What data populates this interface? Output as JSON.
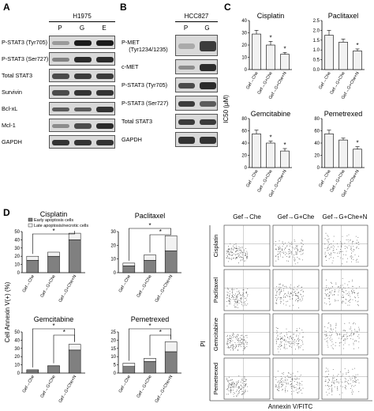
{
  "panel_letters": {
    "a": "A",
    "b": "B",
    "c": "C",
    "d": "D"
  },
  "panel_a": {
    "cell_line": "H1975",
    "lanes": [
      "P",
      "G",
      "E"
    ],
    "bands": [
      {
        "label": "P-STAT3 (Tyr705)",
        "pattern": [
          0.2,
          1,
          1
        ]
      },
      {
        "label": "P-STAT3 (Ser727)",
        "pattern": [
          0.35,
          0.9,
          0.9
        ]
      },
      {
        "label": "Total STAT3",
        "pattern": [
          0.7,
          0.8,
          0.8
        ]
      },
      {
        "label": "Survivin",
        "pattern": [
          0.7,
          0.85,
          0.85
        ]
      },
      {
        "label": "Bcl-xL",
        "pattern": [
          0.6,
          0.6,
          0.85
        ]
      },
      {
        "label": "Mcl-1",
        "pattern": [
          0.3,
          0.7,
          0.9
        ]
      },
      {
        "label": "GAPDH",
        "pattern": [
          0.85,
          0.85,
          0.85
        ]
      }
    ]
  },
  "panel_b": {
    "cell_line": "HCC827",
    "lanes": [
      "P",
      "G"
    ],
    "bands": [
      {
        "label": "P-MET\n(Tyr1234/1235)",
        "pattern": [
          0.1,
          0.8
        ]
      },
      {
        "label": "c-MET",
        "pattern": [
          0.3,
          0.9
        ]
      },
      {
        "label": "P-STAT3 (Tyr705)",
        "pattern": [
          0.7,
          0.9
        ]
      },
      {
        "label": "P-STAT3 (Ser727)",
        "pattern": [
          0.8,
          0.6
        ]
      },
      {
        "label": "Total STAT3",
        "pattern": [
          0.8,
          0.8
        ]
      },
      {
        "label": "GAPDH",
        "pattern": [
          0.85,
          0.85
        ]
      }
    ]
  },
  "panel_c": {
    "ylabel": "IC50 (μM)",
    "star": "*",
    "categories": [
      "Gef→Che",
      "Gef→G+Che",
      "Gef→G+Che+N"
    ],
    "charts": [
      {
        "title": "Cisplatin",
        "values": [
          29,
          20,
          12.5
        ],
        "errors": [
          3,
          3,
          1.5
        ],
        "ylim": [
          0,
          40
        ],
        "ticks": [
          "0",
          "10",
          "20",
          "30",
          "40"
        ],
        "stars": [
          false,
          true,
          true
        ]
      },
      {
        "title": "Paclitaxel",
        "values": [
          1.75,
          1.4,
          0.95
        ],
        "errors": [
          0.25,
          0.15,
          0.1
        ],
        "ylim": [
          0,
          2.5
        ],
        "ticks": [
          "0.0",
          "0.5",
          "1.0",
          "1.5",
          "2.0",
          "2.5"
        ],
        "stars": [
          false,
          false,
          true
        ]
      },
      {
        "title": "Gemcitabine",
        "values": [
          55,
          40,
          27
        ],
        "errors": [
          6,
          3,
          4
        ],
        "ylim": [
          0,
          80
        ],
        "ticks": [
          "0",
          "20",
          "40",
          "60",
          "80"
        ],
        "stars": [
          false,
          true,
          true
        ]
      },
      {
        "title": "Pemetrexed",
        "values": [
          55,
          45,
          30
        ],
        "errors": [
          6,
          3,
          4
        ],
        "ylim": [
          0,
          80
        ],
        "ticks": [
          "0",
          "20",
          "40",
          "60",
          "80"
        ],
        "stars": [
          false,
          false,
          true
        ]
      }
    ]
  },
  "panel_d": {
    "ylabel": "Cell Annexin V(+) (%)",
    "star": "*",
    "legend": [
      "Early apoptosis cells",
      "Late apoptosis/necrotic cells"
    ],
    "categories": [
      "Gef→Che",
      "Gef→G+Che",
      "Gef→G+Che+N"
    ],
    "charts": [
      {
        "title": "Cisplatin",
        "early": [
          15,
          20,
          40
        ],
        "late": [
          5,
          5,
          8
        ],
        "ylim": [
          0,
          50
        ],
        "ticks": [
          "0",
          "10",
          "20",
          "30",
          "40",
          "50"
        ],
        "brackets": [
          [
            0,
            2
          ]
        ]
      },
      {
        "title": "Paclitaxel",
        "early": [
          5,
          9,
          16
        ],
        "late": [
          2,
          4,
          11
        ],
        "ylim": [
          0,
          30
        ],
        "ticks": [
          "0",
          "10",
          "20",
          "30"
        ],
        "brackets": [
          [
            0,
            2
          ],
          [
            1,
            2
          ]
        ]
      },
      {
        "title": "Gemcitabine",
        "early": [
          3,
          8,
          28
        ],
        "late": [
          1,
          1,
          7
        ],
        "ylim": [
          0,
          50
        ],
        "ticks": [
          "0",
          "10",
          "20",
          "30",
          "40",
          "50"
        ],
        "brackets": [
          [
            0,
            2
          ],
          [
            1,
            2
          ]
        ]
      },
      {
        "title": "Pemetrexed",
        "early": [
          4,
          7,
          13
        ],
        "late": [
          2,
          2,
          6
        ],
        "ylim": [
          0,
          25
        ],
        "ticks": [
          "0",
          "5",
          "10",
          "15",
          "20",
          "25"
        ],
        "brackets": [
          [
            0,
            2
          ],
          [
            1,
            2
          ]
        ]
      }
    ],
    "flow": {
      "col_headers": [
        "Gef→Che",
        "Gef→G+Che",
        "Gef→G+Che+N"
      ],
      "row_labels": [
        "Cisplatin",
        "Paclitaxel",
        "Gemcitabine",
        "Pemetrexed"
      ],
      "x_axis": "Annexin V/FITC",
      "y_axis": "PI"
    }
  },
  "colors": {
    "bar_fill": "#f2f2f2",
    "early_fill": "#808080",
    "late_fill": "#f2f2f2",
    "blot_bg": "#d9d9d9",
    "band": "#111111"
  }
}
